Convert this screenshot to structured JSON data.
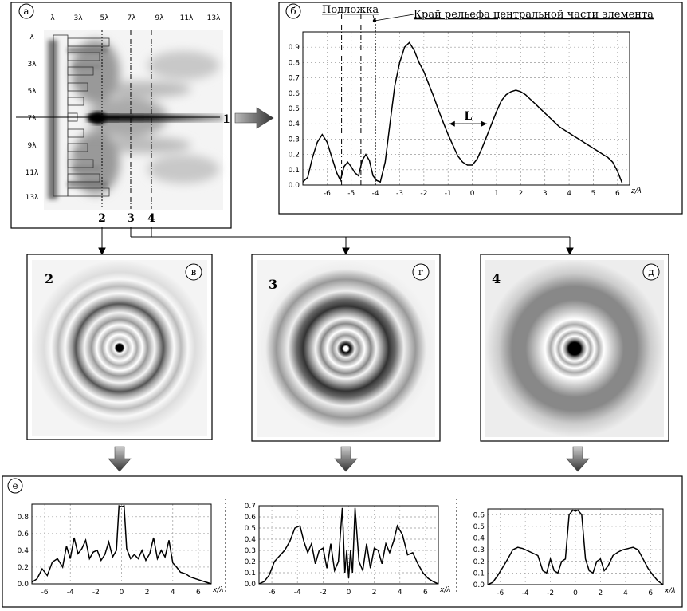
{
  "panels": {
    "a": {
      "tag": "а",
      "x_ticks": [
        "λ",
        "3λ",
        "5λ",
        "7λ",
        "9λ",
        "11λ",
        "13λ"
      ],
      "y_ticks": [
        "λ",
        "3λ",
        "5λ",
        "7λ",
        "9λ",
        "11λ",
        "13λ"
      ],
      "line_labels": [
        "1",
        "2",
        "3",
        "4"
      ]
    },
    "b": {
      "tag": "б",
      "annotation_substrate": "Подложка",
      "annotation_edge": "Край рельефа центральной части элемента",
      "distance_label": "L"
    },
    "c": {
      "tag": "в",
      "number": "2"
    },
    "d": {
      "tag": "г",
      "number": "3"
    },
    "e": {
      "tag": "д",
      "number": "4"
    },
    "f": {
      "tag": "е"
    }
  },
  "chart_data": [
    {
      "id": "b",
      "type": "line",
      "xlabel": "z/λ",
      "ylabel": "",
      "xlim": [
        -7,
        6.5
      ],
      "ylim": [
        0,
        1
      ],
      "x_ticks": [
        -6,
        -5,
        -4,
        -3,
        -2,
        -1,
        0,
        1,
        2,
        3,
        4,
        5,
        6
      ],
      "y_ticks": [
        0.0,
        0.1,
        0.2,
        0.3,
        0.4,
        0.5,
        0.6,
        0.7,
        0.8,
        0.9
      ],
      "markers": [
        -5.4,
        -4.6,
        -4.0
      ],
      "x": [
        -7,
        -6.8,
        -6.6,
        -6.4,
        -6.2,
        -6.0,
        -5.8,
        -5.6,
        -5.45,
        -5.3,
        -5.15,
        -5.0,
        -4.85,
        -4.7,
        -4.55,
        -4.4,
        -4.25,
        -4.1,
        -3.95,
        -3.8,
        -3.6,
        -3.4,
        -3.2,
        -3.0,
        -2.8,
        -2.6,
        -2.4,
        -2.2,
        -2.0,
        -1.8,
        -1.6,
        -1.4,
        -1.2,
        -1.0,
        -0.8,
        -0.6,
        -0.4,
        -0.2,
        0.0,
        0.2,
        0.4,
        0.6,
        0.8,
        1.0,
        1.2,
        1.4,
        1.6,
        1.8,
        2.0,
        2.2,
        2.4,
        2.6,
        2.8,
        3.0,
        3.2,
        3.4,
        3.6,
        3.8,
        4.0,
        4.2,
        4.4,
        4.6,
        4.8,
        5.0,
        5.2,
        5.4,
        5.6,
        5.8,
        6.0,
        6.2
      ],
      "y": [
        0.02,
        0.05,
        0.18,
        0.28,
        0.33,
        0.28,
        0.18,
        0.08,
        0.03,
        0.12,
        0.15,
        0.12,
        0.08,
        0.06,
        0.16,
        0.2,
        0.16,
        0.06,
        0.03,
        0.02,
        0.15,
        0.4,
        0.65,
        0.8,
        0.9,
        0.93,
        0.88,
        0.8,
        0.74,
        0.66,
        0.58,
        0.49,
        0.41,
        0.33,
        0.26,
        0.19,
        0.15,
        0.13,
        0.13,
        0.17,
        0.24,
        0.32,
        0.4,
        0.48,
        0.55,
        0.59,
        0.61,
        0.62,
        0.61,
        0.59,
        0.56,
        0.53,
        0.5,
        0.47,
        0.44,
        0.41,
        0.38,
        0.36,
        0.34,
        0.32,
        0.3,
        0.28,
        0.26,
        0.24,
        0.22,
        0.2,
        0.18,
        0.15,
        0.09,
        0.01
      ]
    },
    {
      "id": "e1",
      "type": "line",
      "xlabel": "x/λ",
      "ylabel": "",
      "xlim": [
        -7,
        7
      ],
      "ylim": [
        0,
        0.95
      ],
      "x_ticks": [
        -6,
        -4,
        -2,
        0,
        2,
        4,
        6
      ],
      "y_ticks": [
        0.0,
        0.2,
        0.4,
        0.6,
        0.8
      ],
      "x": [
        -7,
        -6.6,
        -6.2,
        -5.8,
        -5.4,
        -5.0,
        -4.6,
        -4.3,
        -4.0,
        -3.7,
        -3.4,
        -3.1,
        -2.8,
        -2.5,
        -2.2,
        -1.9,
        -1.6,
        -1.3,
        -1.0,
        -0.7,
        -0.4,
        -0.2,
        0.0,
        0.2,
        0.4,
        0.7,
        1.0,
        1.3,
        1.6,
        1.9,
        2.2,
        2.5,
        2.8,
        3.1,
        3.4,
        3.7,
        4.0,
        4.3,
        4.6,
        5.0,
        5.4,
        5.8,
        6.2,
        6.6,
        7.0
      ],
      "y": [
        0.02,
        0.06,
        0.18,
        0.1,
        0.26,
        0.3,
        0.2,
        0.45,
        0.3,
        0.55,
        0.36,
        0.42,
        0.52,
        0.3,
        0.38,
        0.4,
        0.28,
        0.35,
        0.5,
        0.32,
        0.4,
        0.93,
        0.92,
        0.93,
        0.42,
        0.3,
        0.35,
        0.3,
        0.4,
        0.28,
        0.36,
        0.55,
        0.3,
        0.4,
        0.32,
        0.52,
        0.25,
        0.2,
        0.14,
        0.12,
        0.08,
        0.06,
        0.04,
        0.02,
        0.0
      ]
    },
    {
      "id": "e2",
      "type": "line",
      "xlabel": "x/λ",
      "ylabel": "",
      "xlim": [
        -7,
        7
      ],
      "ylim": [
        0,
        0.7
      ],
      "x_ticks": [
        -6,
        -4,
        -2,
        0,
        2,
        4,
        6
      ],
      "y_ticks": [
        0.0,
        0.1,
        0.2,
        0.3,
        0.4,
        0.5,
        0.6,
        0.7
      ],
      "x": [
        -7,
        -6.6,
        -6.2,
        -5.8,
        -5.4,
        -5.0,
        -4.6,
        -4.2,
        -3.8,
        -3.5,
        -3.2,
        -2.9,
        -2.6,
        -2.3,
        -2.0,
        -1.7,
        -1.4,
        -1.1,
        -0.8,
        -0.5,
        -0.3,
        -0.15,
        0.0,
        0.15,
        0.3,
        0.5,
        0.8,
        1.1,
        1.4,
        1.7,
        2.0,
        2.3,
        2.6,
        2.9,
        3.2,
        3.5,
        3.8,
        4.2,
        4.6,
        5.0,
        5.4,
        5.8,
        6.2,
        6.6,
        7.0
      ],
      "y": [
        0.0,
        0.02,
        0.08,
        0.2,
        0.25,
        0.3,
        0.38,
        0.5,
        0.52,
        0.38,
        0.28,
        0.36,
        0.18,
        0.3,
        0.32,
        0.14,
        0.36,
        0.12,
        0.2,
        0.68,
        0.1,
        0.3,
        0.05,
        0.3,
        0.1,
        0.68,
        0.2,
        0.12,
        0.36,
        0.14,
        0.32,
        0.3,
        0.18,
        0.36,
        0.28,
        0.38,
        0.52,
        0.44,
        0.26,
        0.28,
        0.18,
        0.1,
        0.05,
        0.02,
        0.0
      ]
    },
    {
      "id": "e3",
      "type": "line",
      "xlabel": "x/λ",
      "ylabel": "",
      "xlim": [
        -7,
        7
      ],
      "ylim": [
        0,
        0.65
      ],
      "x_ticks": [
        -6,
        -4,
        -2,
        0,
        2,
        4,
        6
      ],
      "y_ticks": [
        0.0,
        0.1,
        0.2,
        0.3,
        0.4,
        0.5,
        0.6
      ],
      "x": [
        -7,
        -6.6,
        -6.2,
        -5.8,
        -5.4,
        -5.0,
        -4.6,
        -4.2,
        -3.8,
        -3.4,
        -3.0,
        -2.6,
        -2.3,
        -2.0,
        -1.7,
        -1.4,
        -1.1,
        -0.8,
        -0.5,
        -0.2,
        0.0,
        0.2,
        0.5,
        0.8,
        1.1,
        1.4,
        1.7,
        2.0,
        2.3,
        2.6,
        3.0,
        3.4,
        3.8,
        4.2,
        4.6,
        5.0,
        5.4,
        5.8,
        6.2,
        6.6,
        7.0
      ],
      "y": [
        0.0,
        0.02,
        0.08,
        0.15,
        0.22,
        0.3,
        0.32,
        0.31,
        0.29,
        0.27,
        0.25,
        0.12,
        0.1,
        0.22,
        0.12,
        0.1,
        0.2,
        0.22,
        0.6,
        0.64,
        0.63,
        0.64,
        0.6,
        0.22,
        0.12,
        0.1,
        0.2,
        0.22,
        0.12,
        0.16,
        0.25,
        0.28,
        0.3,
        0.31,
        0.32,
        0.3,
        0.22,
        0.14,
        0.08,
        0.03,
        0.0
      ]
    }
  ]
}
